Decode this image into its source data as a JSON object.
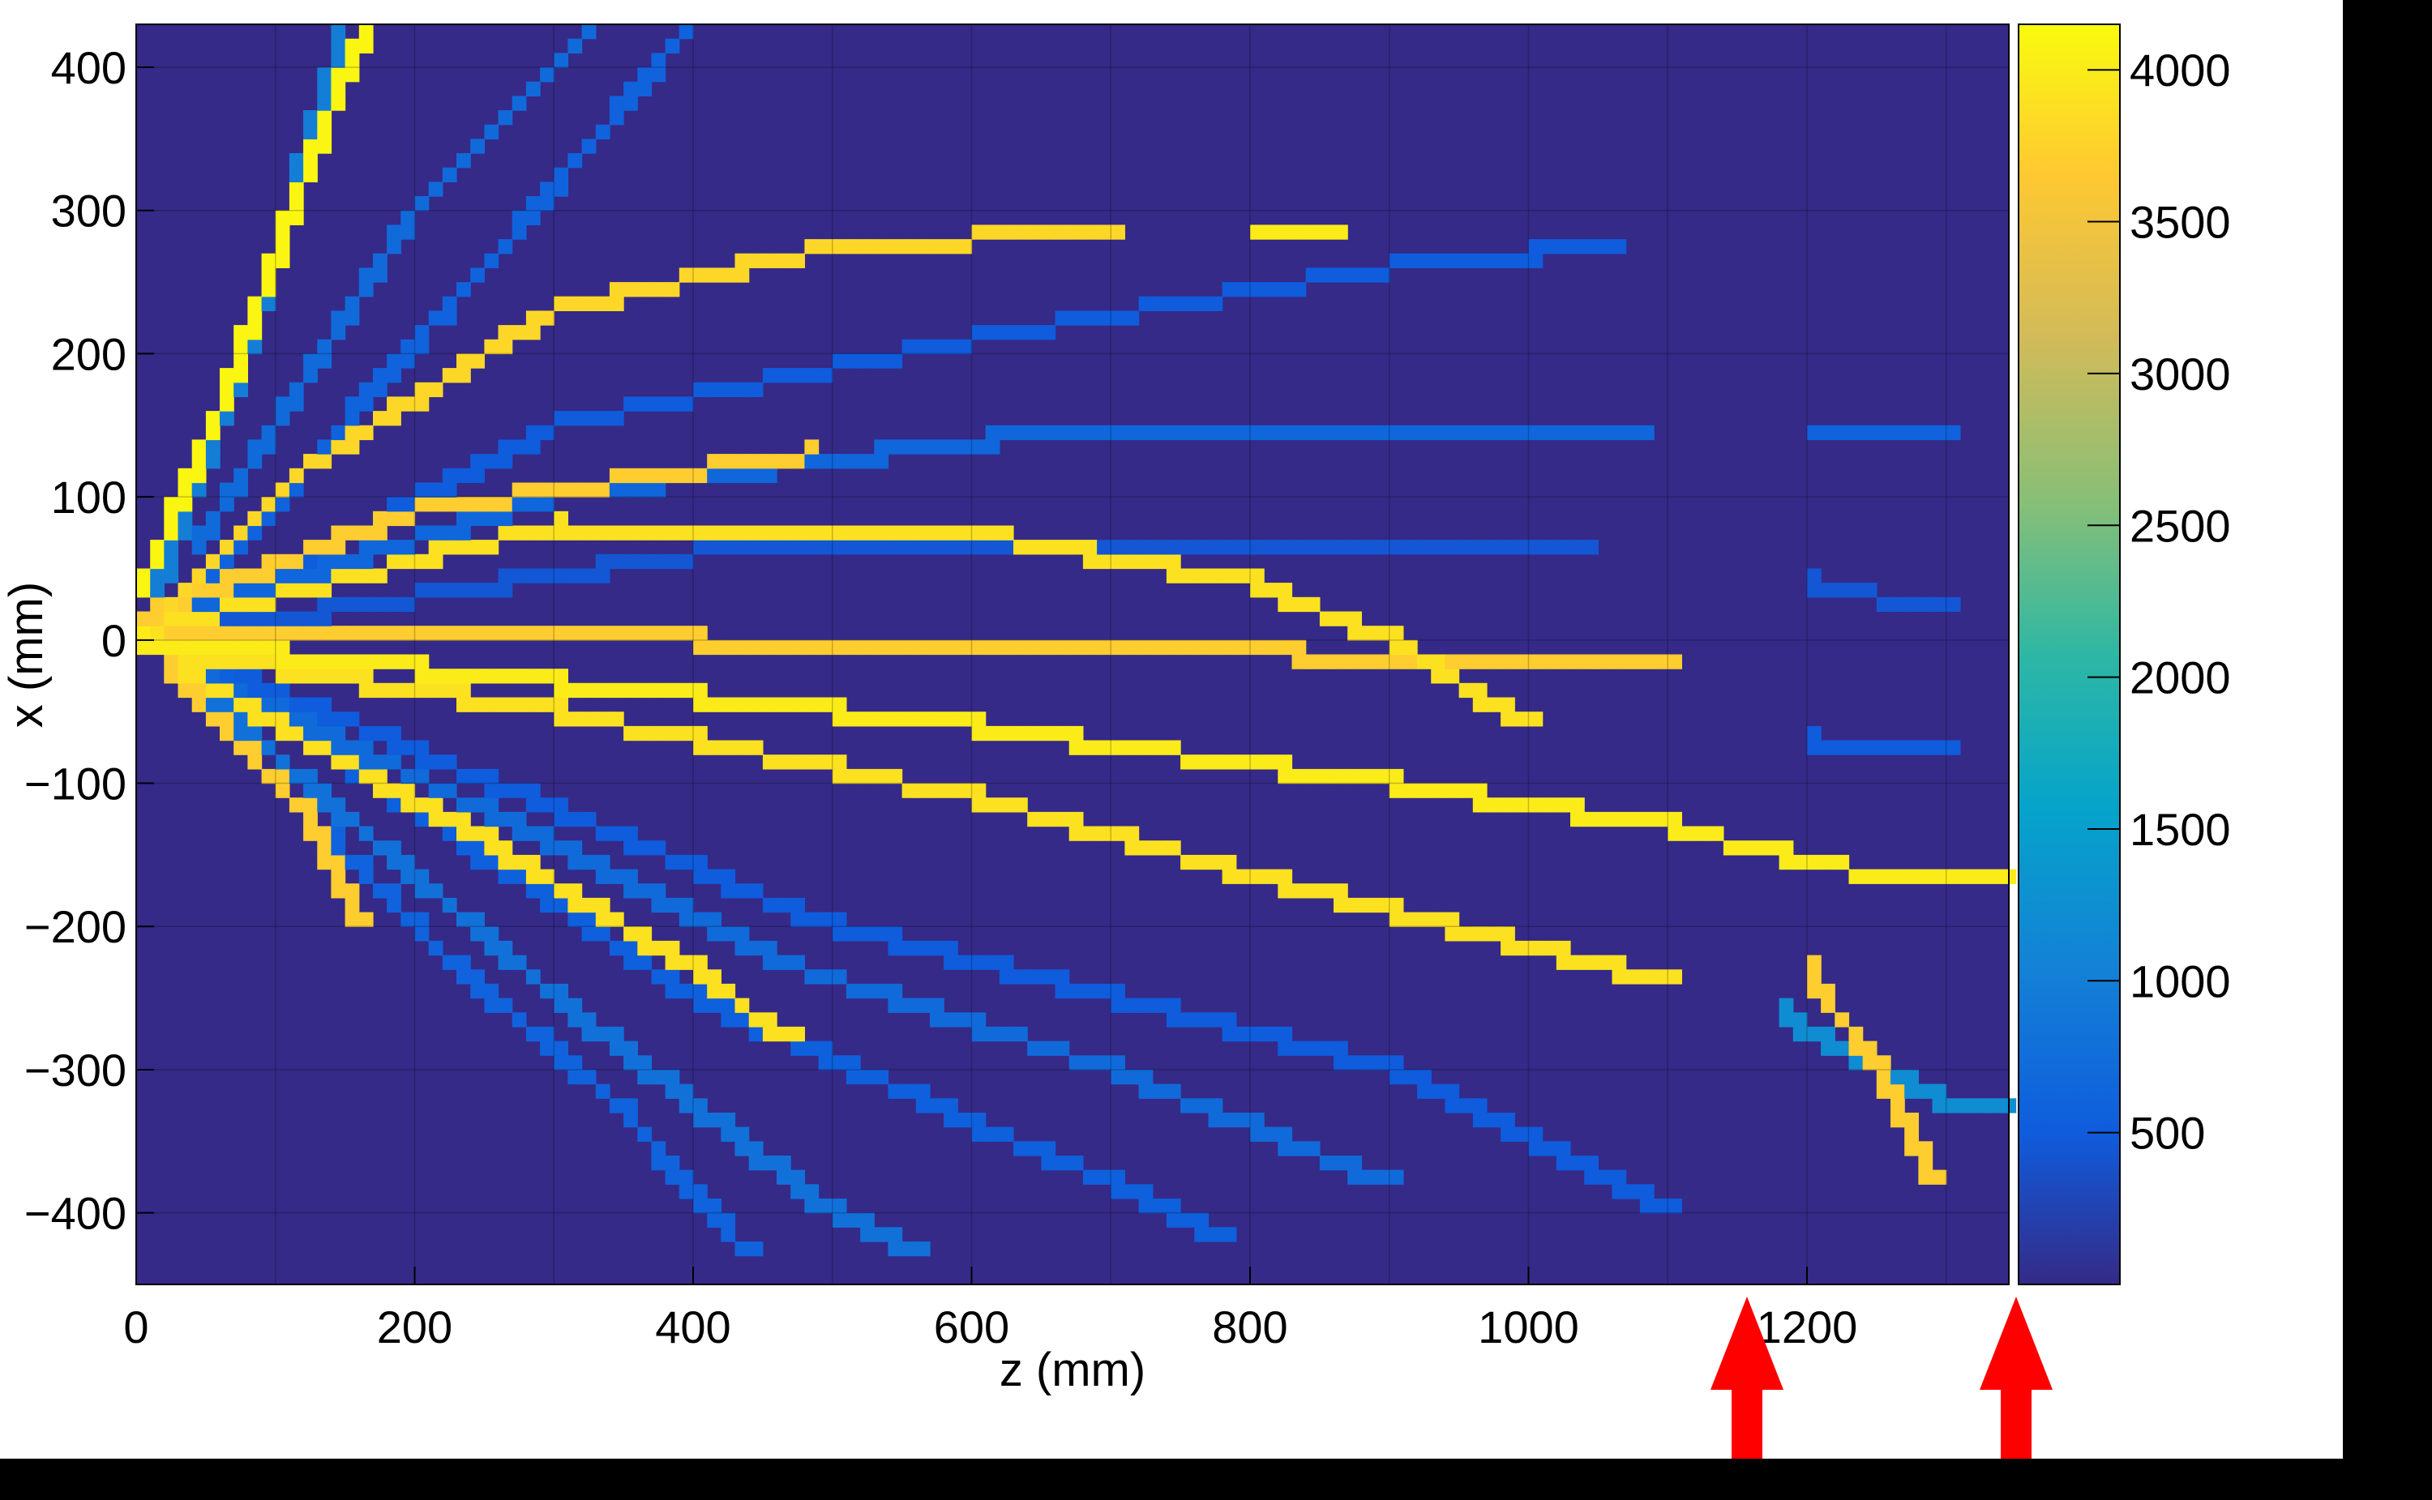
{
  "chart_data": {
    "type": "heatmap",
    "title": "",
    "xlabel": "z (mm)",
    "ylabel": "x (mm)",
    "xlim": [
      0,
      1345
    ],
    "ylim": [
      -450,
      430
    ],
    "x_ticks": [
      0,
      200,
      400,
      600,
      800,
      1000,
      1200
    ],
    "x_tick_labels": [
      "0",
      "200",
      "400",
      "600",
      "800",
      "1000",
      "1200"
    ],
    "y_ticks": [
      400,
      300,
      200,
      100,
      0,
      -100,
      -200,
      -300,
      -400
    ],
    "y_tick_labels": [
      "400",
      "300",
      "200",
      "100",
      "0",
      "−100",
      "−200",
      "−300",
      "−400"
    ],
    "colorbar": {
      "range": [
        0,
        4150
      ],
      "ticks": [
        4000,
        3500,
        3000,
        2500,
        2000,
        1500,
        1000,
        500
      ],
      "tick_labels": [
        "4000",
        "3500",
        "3000",
        "2500",
        "2000",
        "1500",
        "1000",
        "500"
      ],
      "colormap": "parula"
    },
    "background_value": 200,
    "tracks": [
      {
        "points": [
          [
            0,
            30
          ],
          [
            60,
            160
          ],
          [
            120,
            320
          ],
          [
            165,
            430
          ]
        ],
        "value": 4100
      },
      {
        "points": [
          [
            10,
            20
          ],
          [
            80,
            200
          ],
          [
            150,
            430
          ]
        ],
        "value": 1000
      },
      {
        "points": [
          [
            40,
            60
          ],
          [
            200,
            300
          ],
          [
            330,
            430
          ]
        ],
        "value": 700
      },
      {
        "points": [
          [
            20,
            10
          ],
          [
            250,
            260
          ],
          [
            400,
            430
          ]
        ],
        "value": 600
      },
      {
        "points": [
          [
            20,
            20
          ],
          [
            120,
            120
          ],
          [
            300,
            230
          ],
          [
            500,
            275
          ],
          [
            700,
            285
          ]
        ],
        "value": 3800
      },
      {
        "points": [
          [
            800,
            280
          ],
          [
            860,
            280
          ]
        ],
        "value": 4000
      },
      {
        "points": [
          [
            20,
            0
          ],
          [
            300,
            150
          ],
          [
            600,
            210
          ],
          [
            900,
            260
          ],
          [
            1060,
            275
          ]
        ],
        "value": 500
      },
      {
        "points": [
          [
            0,
            15
          ],
          [
            200,
            90
          ],
          [
            480,
            130
          ]
        ],
        "value": 3700
      },
      {
        "points": [
          [
            0,
            10
          ],
          [
            300,
            100
          ],
          [
            650,
            145
          ],
          [
            1000,
            145
          ],
          [
            1080,
            145
          ]
        ],
        "value": 650
      },
      {
        "points": [
          [
            1200,
            140
          ],
          [
            1300,
            140
          ]
        ],
        "value": 600
      },
      {
        "points": [
          [
            0,
            5
          ],
          [
            300,
            80
          ],
          [
            600,
            75
          ],
          [
            800,
            40
          ],
          [
            900,
            0
          ],
          [
            1000,
            -60
          ]
        ],
        "value": 3900
      },
      {
        "points": [
          [
            0,
            0
          ],
          [
            400,
            60
          ],
          [
            800,
            60
          ],
          [
            1040,
            60
          ]
        ],
        "value": 450
      },
      {
        "points": [
          [
            0,
            0
          ],
          [
            400,
            0
          ],
          [
            700,
            -5
          ],
          [
            1100,
            -20
          ]
        ],
        "value": 3700
      },
      {
        "points": [
          [
            0,
            0
          ],
          [
            300,
            -30
          ],
          [
            600,
            -60
          ],
          [
            900,
            -100
          ],
          [
            1100,
            -130
          ],
          [
            1250,
            -165
          ],
          [
            1340,
            -170
          ]
        ],
        "value": 4000
      },
      {
        "points": [
          [
            0,
            -5
          ],
          [
            300,
            -50
          ],
          [
            600,
            -110
          ],
          [
            900,
            -190
          ],
          [
            1100,
            -240
          ]
        ],
        "value": 3900
      },
      {
        "points": [
          [
            20,
            -10
          ],
          [
            250,
            -120
          ],
          [
            450,
            -220
          ],
          [
            700,
            -300
          ],
          [
            900,
            -380
          ]
        ],
        "value": 700
      },
      {
        "points": [
          [
            30,
            -20
          ],
          [
            250,
            -140
          ],
          [
            400,
            -230
          ],
          [
            470,
            -280
          ]
        ],
        "value": 3900
      },
      {
        "points": [
          [
            20,
            -20
          ],
          [
            120,
            -120
          ],
          [
            160,
            -200
          ]
        ],
        "value": 3700
      },
      {
        "points": [
          [
            20,
            -20
          ],
          [
            200,
            -200
          ],
          [
            350,
            -330
          ],
          [
            440,
            -430
          ]
        ],
        "value": 600
      },
      {
        "points": [
          [
            40,
            -30
          ],
          [
            300,
            -250
          ],
          [
            500,
            -400
          ],
          [
            560,
            -430
          ]
        ],
        "value": 800
      },
      {
        "points": [
          [
            50,
            -20
          ],
          [
            400,
            -250
          ],
          [
            700,
            -380
          ],
          [
            780,
            -420
          ]
        ],
        "value": 550
      },
      {
        "points": [
          [
            60,
            -20
          ],
          [
            500,
            -200
          ],
          [
            900,
            -300
          ],
          [
            1100,
            -400
          ]
        ],
        "value": 500
      },
      {
        "points": [
          [
            1200,
            -230
          ],
          [
            1250,
            -300
          ],
          [
            1290,
            -380
          ]
        ],
        "value": 3700
      },
      {
        "points": [
          [
            1180,
            -260
          ],
          [
            1290,
            -320
          ],
          [
            1340,
            -330
          ]
        ],
        "value": 1200
      },
      {
        "points": [
          [
            1200,
            -70
          ],
          [
            1300,
            -80
          ]
        ],
        "value": 500
      },
      {
        "points": [
          [
            1200,
            40
          ],
          [
            1300,
            20
          ]
        ],
        "value": 450
      }
    ]
  }
}
